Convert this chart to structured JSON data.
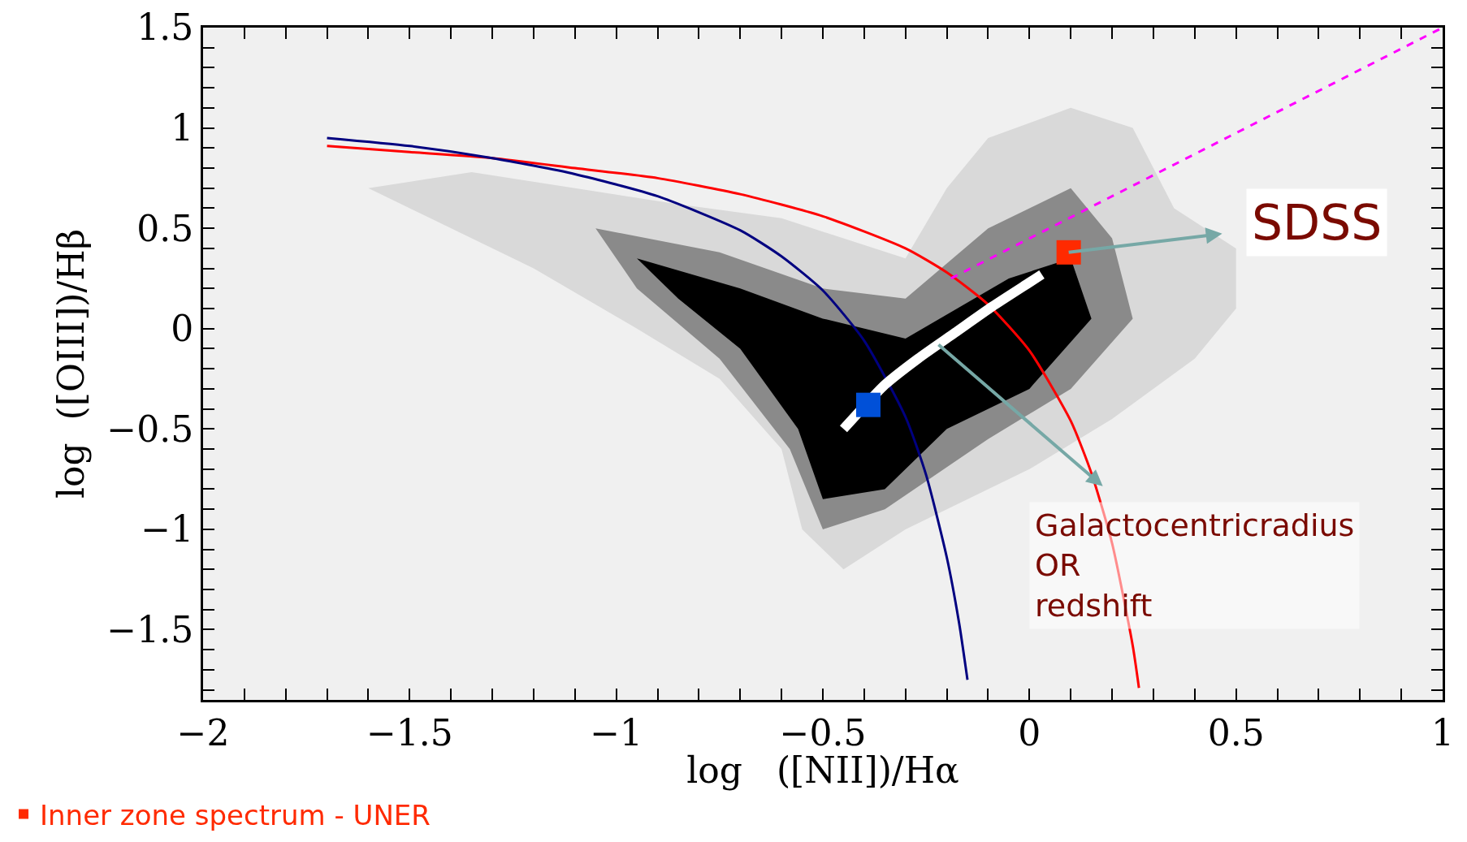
{
  "chart_data": {
    "type": "line",
    "xlabel": "log   ([NII])/Hα",
    "ylabel": "log  ([OIII])/Hβ",
    "xlim": [
      -2,
      1
    ],
    "ylim": [
      -1.85,
      1.5
    ],
    "xticks": [
      {
        "value": -2,
        "label": "−2"
      },
      {
        "value": -1.5,
        "label": "−1.5"
      },
      {
        "value": -1,
        "label": "−1"
      },
      {
        "value": -0.5,
        "label": "−0.5"
      },
      0,
      0.5,
      1
    ],
    "yticks": [
      {
        "value": -1.5,
        "label": "−1.5"
      },
      {
        "value": -1,
        "label": "−1"
      },
      {
        "value": -0.5,
        "label": "−0.5"
      },
      0,
      0.5,
      1,
      1.5
    ],
    "grid": false,
    "legend": "bottom left",
    "series": [
      {
        "type": "line",
        "color": "#ff0000",
        "line_style": "solid",
        "x": [
          -1.7,
          -1.5,
          -1.3,
          -1.1,
          -0.9,
          -0.7,
          -0.5,
          -0.3,
          -0.2,
          -0.1,
          0,
          0.1,
          0.15,
          0.2,
          0.25,
          0.265
        ],
        "values": [
          0.91,
          0.88,
          0.85,
          0.8,
          0.75,
          0.67,
          0.56,
          0.4,
          0.28,
          0.12,
          -0.11,
          -0.46,
          -0.72,
          -1.07,
          -1.58,
          -1.79
        ]
      },
      {
        "type": "line",
        "color": "#000080",
        "line_style": "solid",
        "x": [
          -1.7,
          -1.5,
          -1.3,
          -1.1,
          -0.9,
          -0.7,
          -0.6,
          -0.5,
          -0.4,
          -0.3,
          -0.25,
          -0.2,
          -0.17,
          -0.15
        ],
        "values": [
          0.95,
          0.91,
          0.85,
          0.77,
          0.66,
          0.49,
          0.36,
          0.19,
          -0.06,
          -0.44,
          -0.73,
          -1.14,
          -1.47,
          -1.75
        ]
      },
      {
        "type": "line",
        "color": "#ff00ff",
        "line_style": "dashed",
        "x": [
          -0.19,
          1
        ],
        "values": [
          0.25,
          1.5
        ]
      },
      {
        "type": "line",
        "color": "#ffffff",
        "line_style": "solid",
        "x": [
          -0.45,
          -0.35,
          -0.27,
          -0.18,
          -0.09,
          0.0,
          0.03
        ],
        "values": [
          -0.5,
          -0.28,
          -0.15,
          -0.02,
          0.11,
          0.23,
          0.27
        ]
      },
      {
        "type": "scatter",
        "marker": "square",
        "color": "#0050d8",
        "x": [
          -0.39
        ],
        "values": [
          -0.38
        ]
      },
      {
        "type": "scatter",
        "marker": "square",
        "color": "#ff2a00",
        "name": "Inner zone spectrum - UNER",
        "x": [
          0.095
        ],
        "values": [
          0.38
        ]
      }
    ],
    "annotations": [
      {
        "text": "SDSS",
        "x": 0.095,
        "y": 0.38
      },
      {
        "text": "Galactocentricradius\nOR\nredshift",
        "x": -0.22,
        "y": -0.08
      }
    ]
  }
}
